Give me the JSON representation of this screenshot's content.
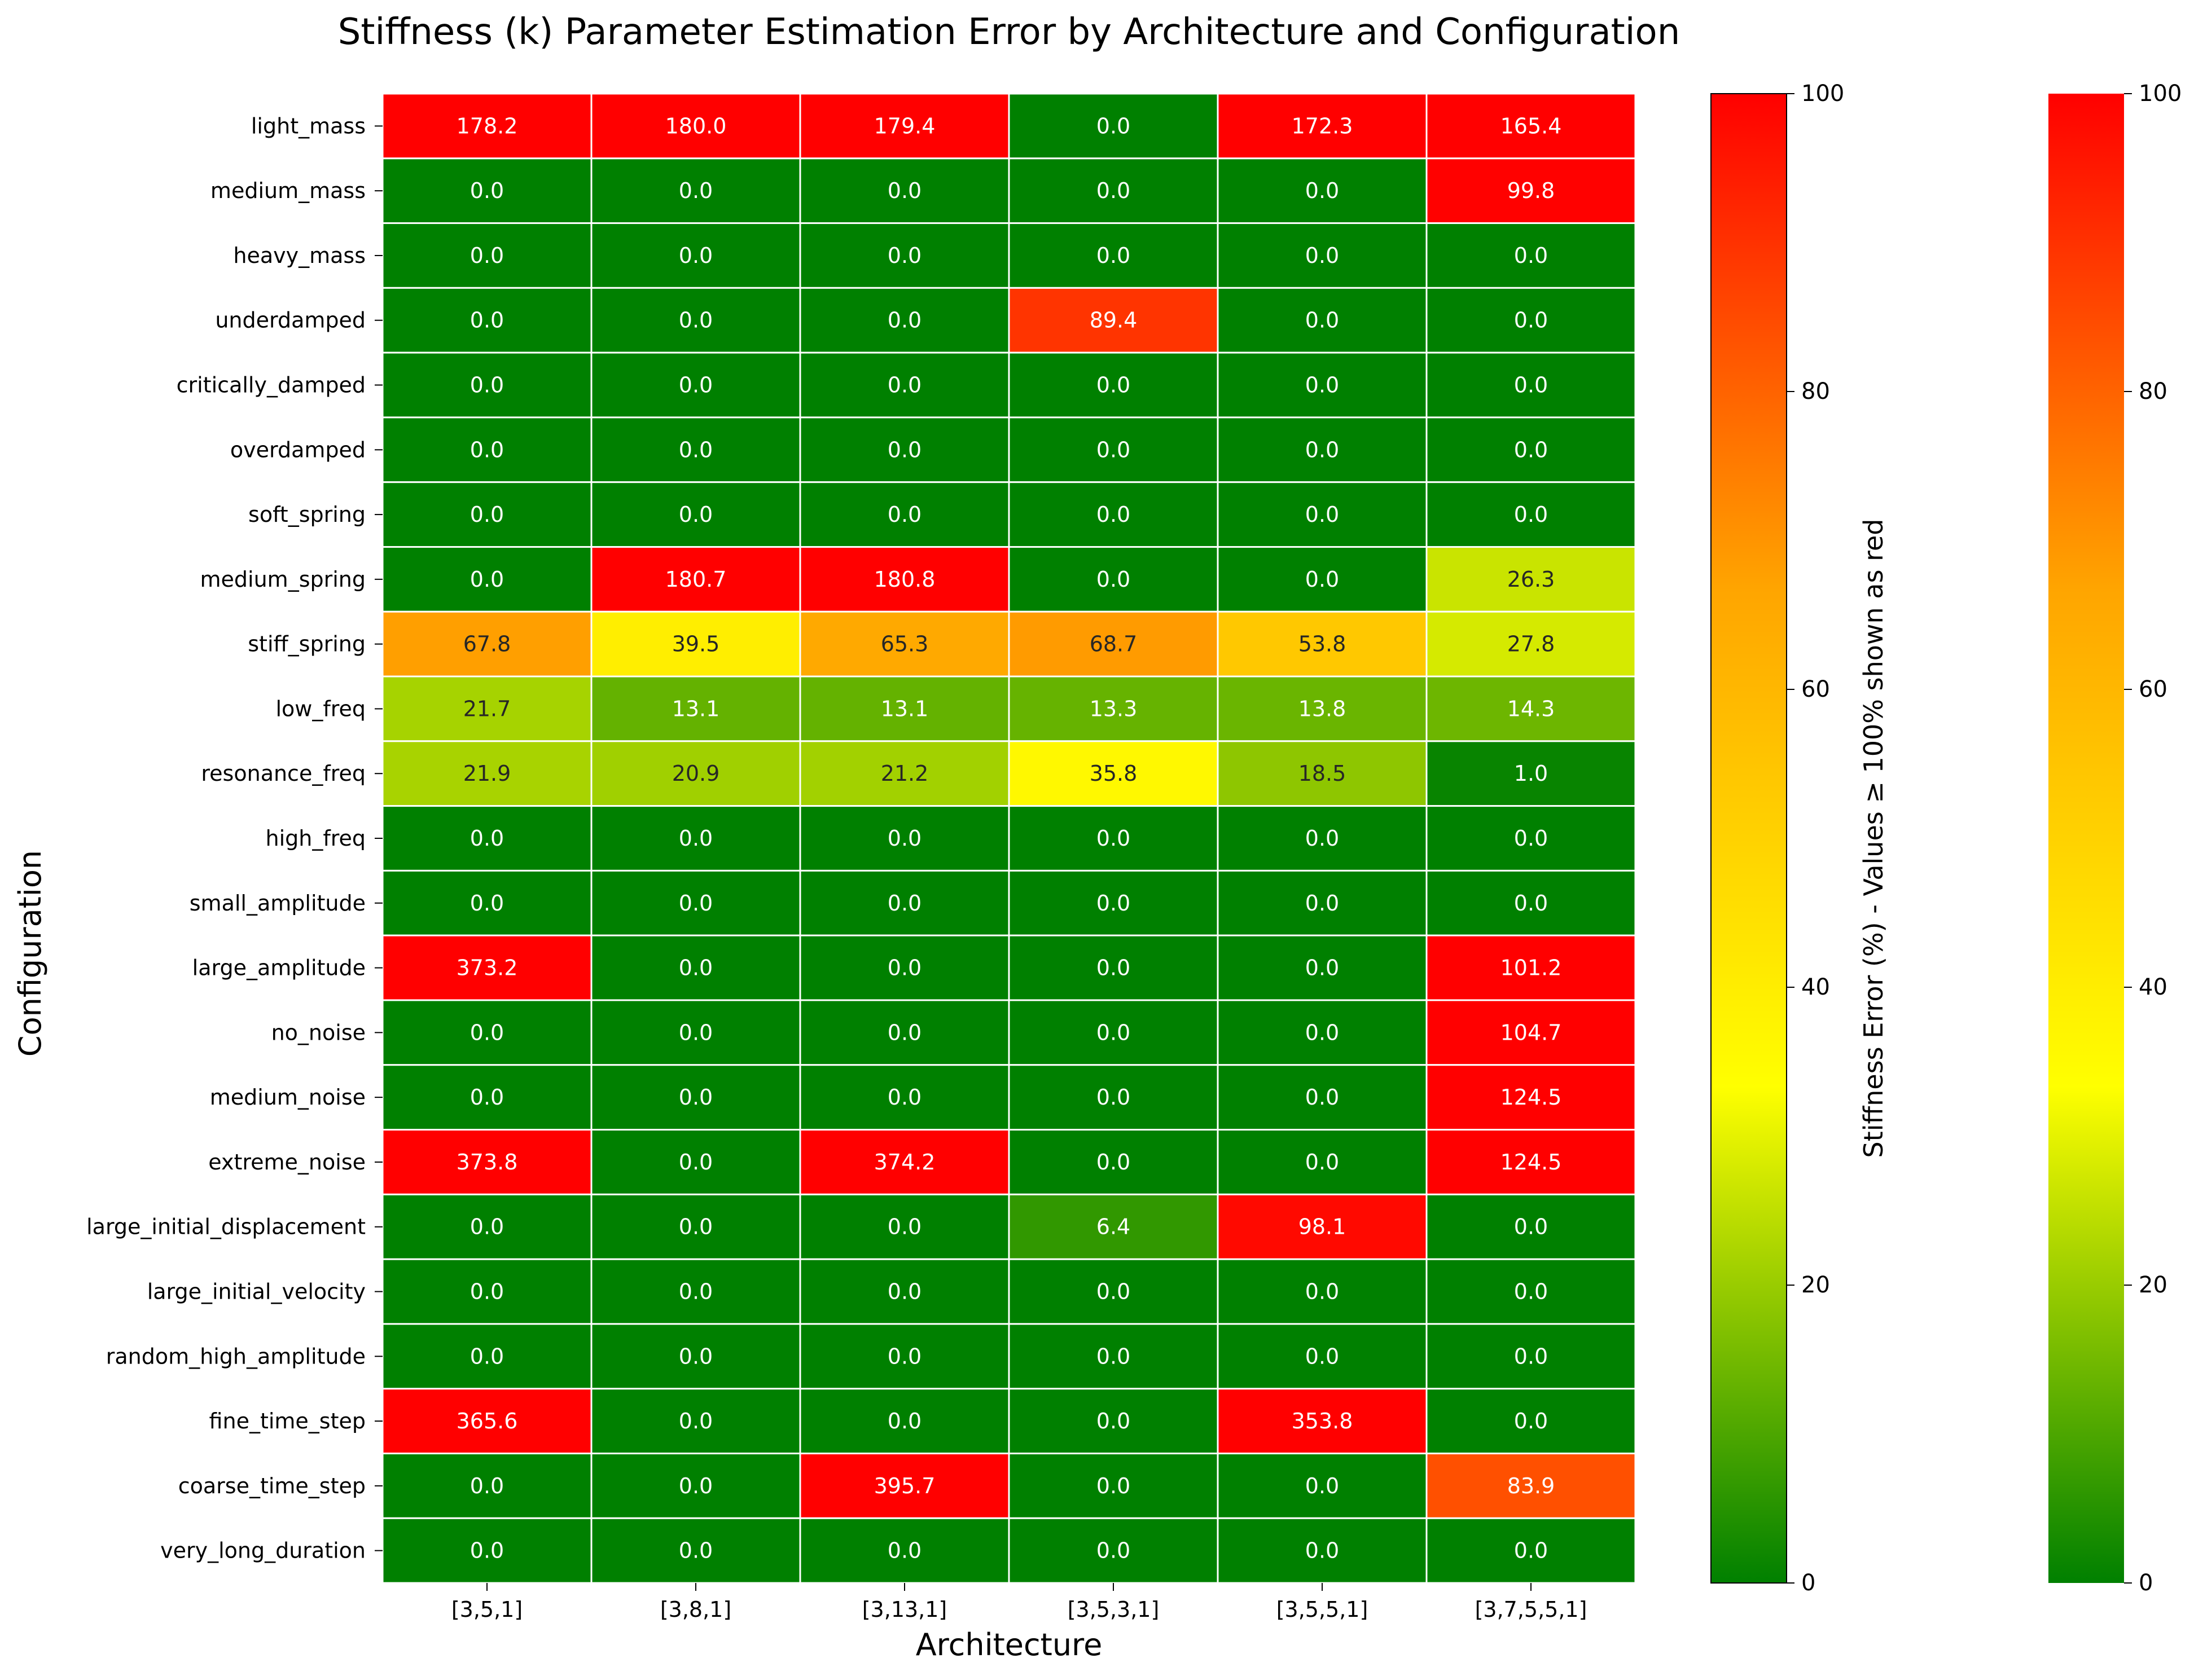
{
  "chart_data": {
    "type": "heatmap",
    "title": "Stiffness (k) Parameter Estimation Error by Architecture and Configuration",
    "xlabel": "Architecture",
    "ylabel": "Configuration",
    "x_categories": [
      "[3,5,1]",
      "[3,8,1]",
      "[3,13,1]",
      "[3,5,3,1]",
      "[3,5,5,1]",
      "[3,7,5,5,1]"
    ],
    "y_categories": [
      "light_mass",
      "medium_mass",
      "heavy_mass",
      "underdamped",
      "critically_damped",
      "overdamped",
      "soft_spring",
      "medium_spring",
      "stiff_spring",
      "low_freq",
      "resonance_freq",
      "high_freq",
      "small_amplitude",
      "large_amplitude",
      "no_noise",
      "medium_noise",
      "extreme_noise",
      "large_initial_displacement",
      "large_initial_velocity",
      "random_high_amplitude",
      "fine_time_step",
      "coarse_time_step",
      "very_long_duration"
    ],
    "values": [
      [
        178.2,
        180.0,
        179.4,
        0.0,
        172.3,
        165.4
      ],
      [
        0.0,
        0.0,
        0.0,
        0.0,
        0.0,
        99.8
      ],
      [
        0.0,
        0.0,
        0.0,
        0.0,
        0.0,
        0.0
      ],
      [
        0.0,
        0.0,
        0.0,
        89.4,
        0.0,
        0.0
      ],
      [
        0.0,
        0.0,
        0.0,
        0.0,
        0.0,
        0.0
      ],
      [
        0.0,
        0.0,
        0.0,
        0.0,
        0.0,
        0.0
      ],
      [
        0.0,
        0.0,
        0.0,
        0.0,
        0.0,
        0.0
      ],
      [
        0.0,
        180.7,
        180.8,
        0.0,
        0.0,
        26.3
      ],
      [
        67.8,
        39.5,
        65.3,
        68.7,
        53.8,
        27.8
      ],
      [
        21.7,
        13.1,
        13.1,
        13.3,
        13.8,
        14.3
      ],
      [
        21.9,
        20.9,
        21.2,
        35.8,
        18.5,
        1.0
      ],
      [
        0.0,
        0.0,
        0.0,
        0.0,
        0.0,
        0.0
      ],
      [
        0.0,
        0.0,
        0.0,
        0.0,
        0.0,
        0.0
      ],
      [
        373.2,
        0.0,
        0.0,
        0.0,
        0.0,
        101.2
      ],
      [
        0.0,
        0.0,
        0.0,
        0.0,
        0.0,
        104.7
      ],
      [
        0.0,
        0.0,
        0.0,
        0.0,
        0.0,
        124.5
      ],
      [
        373.8,
        0.0,
        374.2,
        0.0,
        0.0,
        124.5
      ],
      [
        0.0,
        0.0,
        0.0,
        6.4,
        98.1,
        0.0
      ],
      [
        0.0,
        0.0,
        0.0,
        0.0,
        0.0,
        0.0
      ],
      [
        0.0,
        0.0,
        0.0,
        0.0,
        0.0,
        0.0
      ],
      [
        365.6,
        0.0,
        0.0,
        0.0,
        353.8,
        0.0
      ],
      [
        0.0,
        0.0,
        395.7,
        0.0,
        0.0,
        83.9
      ],
      [
        0.0,
        0.0,
        0.0,
        0.0,
        0.0,
        0.0
      ]
    ],
    "value_format": "one decimal",
    "color_range": [
      0,
      100
    ],
    "color_stops": [
      "#008000",
      "#ffff00",
      "#ffa500",
      "#ff0000"
    ],
    "grid_line_color": "#ffffff",
    "colorbars": [
      {
        "label": "Stiffness Error (%) - Values ≥ 100% shown as red",
        "ticks": [
          0,
          20,
          40,
          60,
          80,
          100
        ]
      },
      {
        "label": "",
        "ticks": [
          0,
          20,
          40,
          60,
          80,
          100
        ]
      }
    ]
  }
}
